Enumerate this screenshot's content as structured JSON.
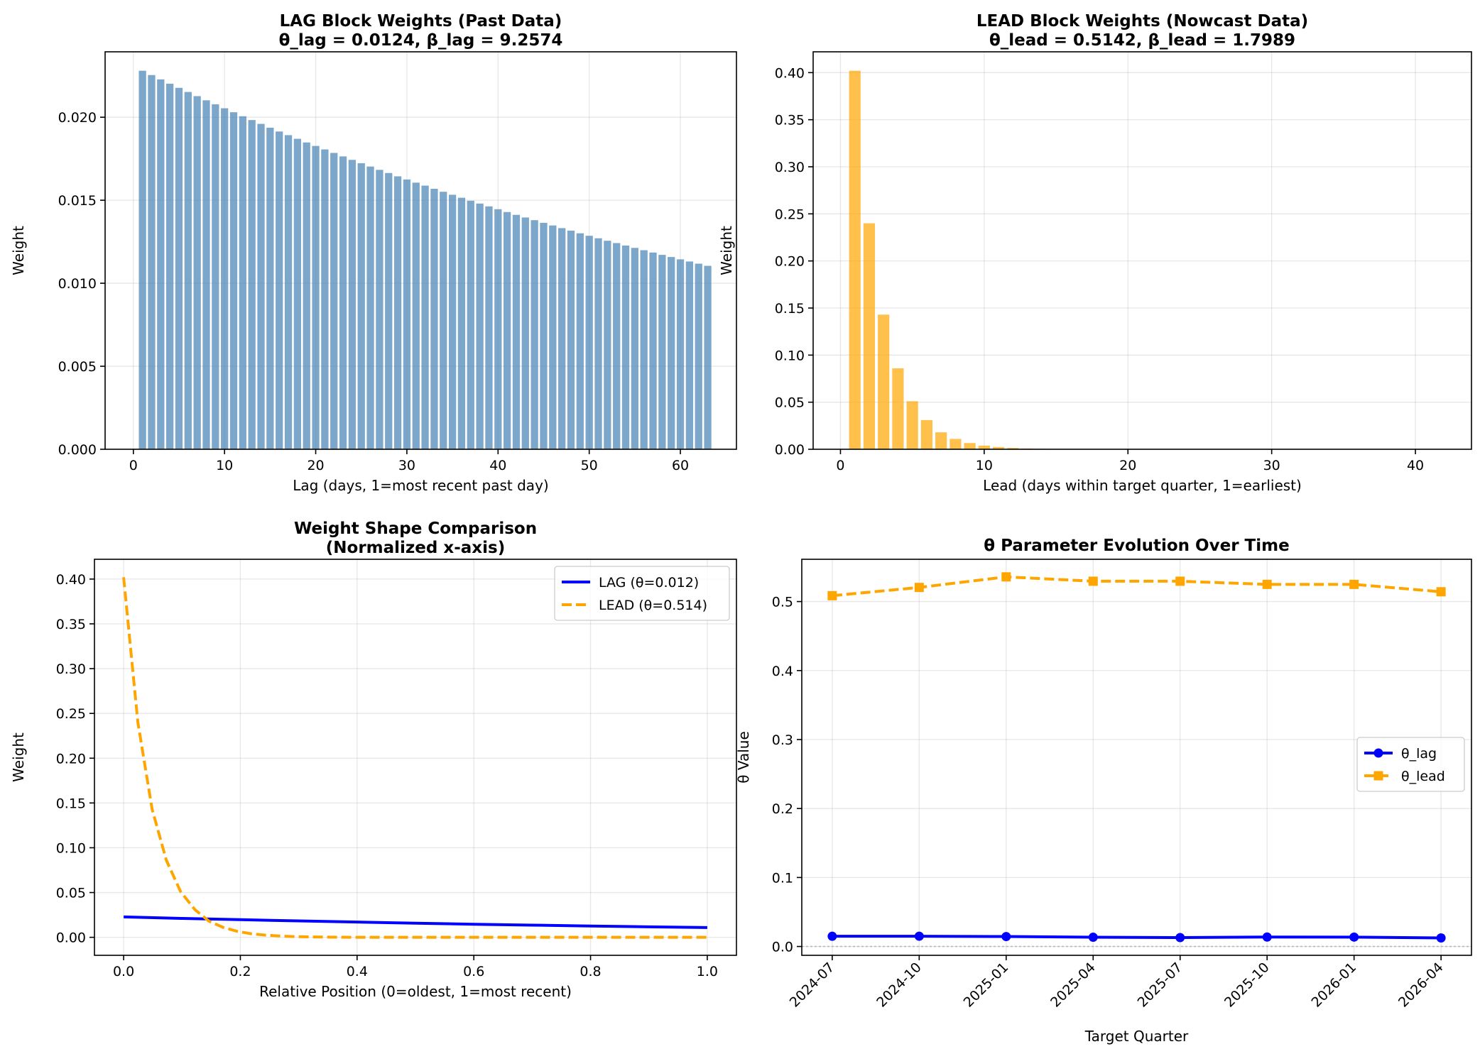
{
  "chart_data": [
    {
      "id": "lag",
      "type": "bar",
      "title": [
        "LAG Block Weights (Past Data)",
        "θ_lag = 0.0124, β_lag = 9.2574"
      ],
      "xlabel": "Lag (days, 1=most recent past day)",
      "ylabel": "Weight",
      "xlim": [
        -3.1,
        66.15
      ],
      "ylim": [
        0,
        0.02394
      ],
      "xticks": [
        0,
        10,
        20,
        30,
        40,
        50,
        60
      ],
      "xtick_labels": [
        "0",
        "10",
        "20",
        "30",
        "40",
        "50",
        "60"
      ],
      "yticks": [
        0,
        0.005,
        0.01,
        0.015,
        0.02
      ],
      "ytick_labels": [
        "0.000",
        "0.005",
        "0.010",
        "0.015",
        "0.020"
      ],
      "grid": true,
      "color": "#4682b4",
      "x": [
        1,
        2,
        3,
        4,
        5,
        6,
        7,
        8,
        9,
        10,
        11,
        12,
        13,
        14,
        15,
        16,
        17,
        18,
        19,
        20,
        21,
        22,
        23,
        24,
        25,
        26,
        27,
        28,
        29,
        30,
        31,
        32,
        33,
        34,
        35,
        36,
        37,
        38,
        39,
        40,
        41,
        42,
        43,
        44,
        45,
        46,
        47,
        48,
        49,
        50,
        51,
        52,
        53,
        54,
        55,
        56,
        57,
        58,
        59,
        60,
        61,
        62,
        63
      ],
      "values": [
        0.0228,
        0.02254,
        0.02228,
        0.02202,
        0.02177,
        0.02152,
        0.02127,
        0.02102,
        0.02078,
        0.02054,
        0.0203,
        0.02006,
        0.01983,
        0.0196,
        0.01937,
        0.01914,
        0.01892,
        0.0187,
        0.01848,
        0.01827,
        0.01806,
        0.01785,
        0.01764,
        0.01743,
        0.01723,
        0.01703,
        0.01683,
        0.01664,
        0.01644,
        0.01625,
        0.01606,
        0.01588,
        0.01569,
        0.01551,
        0.01533,
        0.01515,
        0.01497,
        0.0148,
        0.01463,
        0.01446,
        0.01429,
        0.01412,
        0.01396,
        0.0138,
        0.01364,
        0.01348,
        0.01332,
        0.01317,
        0.01301,
        0.01286,
        0.01271,
        0.01256,
        0.01242,
        0.01227,
        0.01213,
        0.01199,
        0.01185,
        0.01171,
        0.01158,
        0.01144,
        0.01131,
        0.01118,
        0.01105
      ]
    },
    {
      "id": "lead",
      "type": "bar",
      "title": [
        "LEAD Block Weights (Nowcast Data)",
        "θ_lead = 0.5142, β_lead = 1.7989"
      ],
      "xlabel": "Lead (days within target quarter, 1=earliest)",
      "ylabel": "Weight",
      "xlim": [
        -1.9,
        43.9
      ],
      "ylim": [
        0,
        0.4221
      ],
      "xticks": [
        0,
        10,
        20,
        30,
        40
      ],
      "xtick_labels": [
        "0",
        "10",
        "20",
        "30",
        "40"
      ],
      "yticks": [
        0,
        0.05,
        0.1,
        0.15,
        0.2,
        0.25,
        0.3,
        0.35,
        0.4
      ],
      "ytick_labels": [
        "0.00",
        "0.05",
        "0.10",
        "0.15",
        "0.20",
        "0.25",
        "0.30",
        "0.35",
        "0.40"
      ],
      "grid": true,
      "color": "#ffa500",
      "x": [
        1,
        2,
        3,
        4,
        5,
        6,
        7,
        8,
        9,
        10,
        11,
        12,
        13,
        14,
        15,
        16,
        17,
        18,
        19,
        20,
        21,
        22,
        23,
        24,
        25,
        26,
        27,
        28,
        29,
        30,
        31,
        32,
        33,
        34,
        35,
        36,
        37,
        38,
        39,
        40,
        41,
        42
      ],
      "values": [
        0.402,
        0.24,
        0.143,
        0.086,
        0.051,
        0.031,
        0.018,
        0.011,
        0.0066,
        0.0039,
        0.0024,
        0.0014,
        0.0008,
        0.0005,
        0.0003,
        0.0002,
        0.0001,
        0.0001,
        0,
        0,
        0,
        0,
        0,
        0,
        0,
        0,
        0,
        0,
        0,
        0,
        0,
        0,
        0,
        0,
        0,
        0,
        0,
        0,
        0,
        0,
        0,
        0
      ]
    },
    {
      "id": "shape",
      "type": "line",
      "title": [
        "Weight Shape Comparison",
        "(Normalized x-axis)"
      ],
      "xlabel": "Relative Position (0=oldest, 1=most recent)",
      "ylabel": "Weight",
      "xlim": [
        -0.05,
        1.05
      ],
      "ylim": [
        -0.0201,
        0.4221
      ],
      "xticks": [
        0,
        0.2,
        0.4,
        0.6,
        0.8,
        1.0
      ],
      "xtick_labels": [
        "0.0",
        "0.2",
        "0.4",
        "0.6",
        "0.8",
        "1.0"
      ],
      "yticks": [
        0,
        0.05,
        0.1,
        0.15,
        0.2,
        0.25,
        0.3,
        0.35,
        0.4
      ],
      "ytick_labels": [
        "0.00",
        "0.05",
        "0.10",
        "0.15",
        "0.20",
        "0.25",
        "0.30",
        "0.35",
        "0.40"
      ],
      "grid": true,
      "legend": "upper right",
      "series": [
        {
          "name": "LAG (θ=0.012)",
          "color": "#0000ff",
          "dash": "solid",
          "x": [
            0,
            0.1,
            0.2,
            0.3,
            0.4,
            0.5,
            0.6,
            0.7,
            0.8,
            0.9,
            1.0
          ],
          "y": [
            0.0228,
            0.0211,
            0.0197,
            0.0183,
            0.017,
            0.0158,
            0.0146,
            0.0136,
            0.0126,
            0.0117,
            0.0109
          ]
        },
        {
          "name": "LEAD (θ=0.514)",
          "color": "#ffa500",
          "dash": "dashed",
          "x": [
            0,
            0.0244,
            0.0488,
            0.0732,
            0.0976,
            0.122,
            0.1463,
            0.1707,
            0.1951,
            0.2195,
            0.2439,
            0.2683,
            0.2927,
            0.3171,
            0.35,
            0.4,
            0.5,
            0.6,
            0.7,
            0.8,
            0.9,
            1.0
          ],
          "y": [
            0.402,
            0.24,
            0.143,
            0.086,
            0.051,
            0.031,
            0.018,
            0.011,
            0.0066,
            0.0039,
            0.0024,
            0.0014,
            0.0008,
            0.0005,
            0.0002,
            0,
            0,
            0,
            0,
            0,
            0,
            0
          ]
        }
      ]
    },
    {
      "id": "evolution",
      "type": "line",
      "title": [
        "θ Parameter Evolution Over Time"
      ],
      "xlabel": "Target Quarter",
      "ylabel": "θ Value",
      "xlim": [
        -0.35,
        7.35
      ],
      "ylim": [
        -0.0128,
        0.5613
      ],
      "categories": [
        "2024-07",
        "2024-10",
        "2025-01",
        "2025-04",
        "2025-07",
        "2025-10",
        "2026-01",
        "2026-04"
      ],
      "yticks": [
        0,
        0.1,
        0.2,
        0.3,
        0.4,
        0.5
      ],
      "ytick_labels": [
        "0.0",
        "0.1",
        "0.2",
        "0.3",
        "0.4",
        "0.5"
      ],
      "grid": true,
      "reference_line": 0,
      "legend": "center right",
      "series": [
        {
          "name": "θ_lag",
          "color": "#0000ff",
          "dash": "solid",
          "marker": "circle",
          "values": [
            0.0148,
            0.0149,
            0.0144,
            0.0134,
            0.0129,
            0.0137,
            0.0136,
            0.0124
          ]
        },
        {
          "name": "θ_lead",
          "color": "#ffa500",
          "dash": "dashed",
          "marker": "square",
          "values": [
            0.5085,
            0.5205,
            0.5358,
            0.5295,
            0.5295,
            0.5249,
            0.5249,
            0.5142
          ]
        }
      ]
    }
  ]
}
